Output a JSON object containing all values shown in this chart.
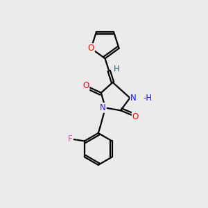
{
  "bg_color": "#ebebeb",
  "bond_color": "#000000",
  "bond_width": 1.6,
  "atom_colors": {
    "O": "#ff0000",
    "N": "#1a1aff",
    "H_teal": "#336666",
    "F": "#ff44aa",
    "C": "#000000"
  },
  "font_size": 8.5
}
